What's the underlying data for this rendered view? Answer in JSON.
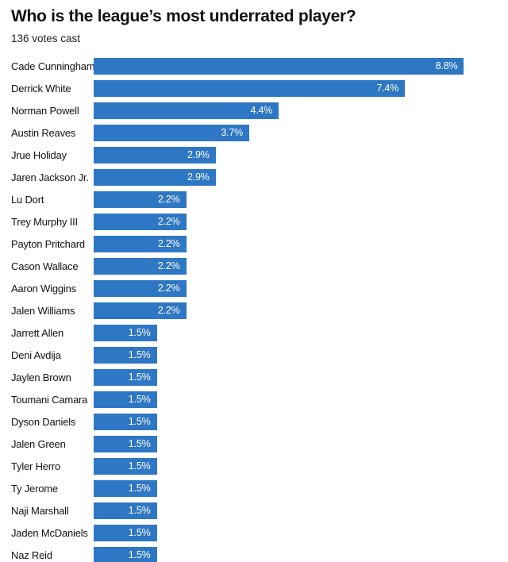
{
  "header": {
    "title": "Who is the league’s most underrated player?",
    "subtitle": "136 votes cast"
  },
  "colors": {
    "bar": "#2e77c5",
    "title_text": "#121212",
    "label_text": "#121212",
    "value_text": "#ffffff",
    "background": "#ffffff"
  },
  "chart_data": {
    "type": "bar",
    "orientation": "horizontal",
    "title": "Who is the league’s most underrated player?",
    "subtitle": "136 votes cast",
    "xlabel": "",
    "ylabel": "",
    "xlim": [
      0,
      9.2
    ],
    "grid": false,
    "legend": null,
    "unit": "%",
    "categories": [
      "Cade Cunningham",
      "Derrick White",
      "Norman Powell",
      "Austin Reaves",
      "Jrue Holiday",
      "Jaren Jackson Jr.",
      "Lu Dort",
      "Trey Murphy III",
      "Payton Pritchard",
      "Cason Wallace",
      "Aaron Wiggins",
      "Jalen Williams",
      "Jarrett Allen",
      "Deni Avdija",
      "Jaylen Brown",
      "Toumani Camara",
      "Dyson Daniels",
      "Jalen Green",
      "Tyler Herro",
      "Ty Jerome",
      "Naji Marshall",
      "Jaden McDaniels",
      "Naz Reid"
    ],
    "values": [
      8.8,
      7.4,
      4.4,
      3.7,
      2.9,
      2.9,
      2.2,
      2.2,
      2.2,
      2.2,
      2.2,
      2.2,
      1.5,
      1.5,
      1.5,
      1.5,
      1.5,
      1.5,
      1.5,
      1.5,
      1.5,
      1.5,
      1.5
    ],
    "value_labels": [
      "8.8%",
      "7.4%",
      "4.4%",
      "3.7%",
      "2.9%",
      "2.9%",
      "2.2%",
      "2.2%",
      "2.2%",
      "2.2%",
      "2.2%",
      "2.2%",
      "1.5%",
      "1.5%",
      "1.5%",
      "1.5%",
      "1.5%",
      "1.5%",
      "1.5%",
      "1.5%",
      "1.5%",
      "1.5%",
      "1.5%"
    ]
  }
}
